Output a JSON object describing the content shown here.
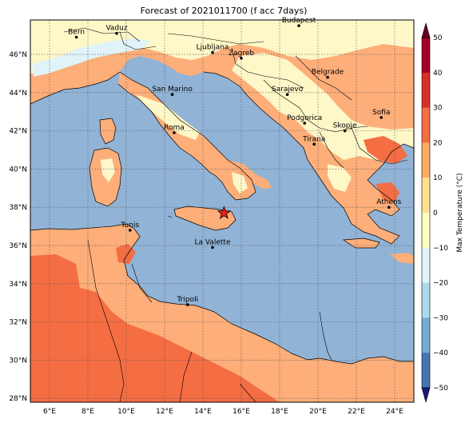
{
  "title": "Forecast of 2021011700 (f acc 7days)",
  "colors": {
    "sea": "#91b3d6",
    "land_warm": "#fdae79",
    "land_hot": "#f46d43",
    "land_mild": "#fef7c8",
    "land_cool": "#e0f3f8"
  },
  "lon_ticks": [
    "6°E",
    "8°E",
    "10°E",
    "12°E",
    "14°E",
    "16°E",
    "18°E",
    "20°E",
    "22°E",
    "24°E"
  ],
  "lat_ticks": [
    "46°N",
    "44°N",
    "42°N",
    "40°N",
    "38°N",
    "36°N",
    "34°N",
    "32°N",
    "30°N",
    "28°N"
  ],
  "cities": [
    {
      "name": "Bern",
      "lon": 7.4,
      "lat": 46.9
    },
    {
      "name": "Vaduz",
      "lon": 9.5,
      "lat": 47.1
    },
    {
      "name": "Budapest",
      "lon": 19.0,
      "lat": 47.5
    },
    {
      "name": "Ljubljana",
      "lon": 14.5,
      "lat": 46.1
    },
    {
      "name": "Zagreb",
      "lon": 16.0,
      "lat": 45.8
    },
    {
      "name": "San Marino",
      "lon": 12.4,
      "lat": 43.9
    },
    {
      "name": "Sarajevo",
      "lon": 18.4,
      "lat": 43.9
    },
    {
      "name": "Belgrade",
      "lon": 20.5,
      "lat": 44.8
    },
    {
      "name": "Roma",
      "lon": 12.5,
      "lat": 41.9
    },
    {
      "name": "Podgorica",
      "lon": 19.3,
      "lat": 42.4
    },
    {
      "name": "Skopje",
      "lon": 21.4,
      "lat": 42.0
    },
    {
      "name": "Sofia",
      "lon": 23.3,
      "lat": 42.7
    },
    {
      "name": "Tirana",
      "lon": 19.8,
      "lat": 41.3
    },
    {
      "name": "Athens",
      "lon": 23.7,
      "lat": 38.0
    },
    {
      "name": "Tunis",
      "lon": 10.2,
      "lat": 36.8
    },
    {
      "name": "La Valette",
      "lon": 14.5,
      "lat": 35.9
    },
    {
      "name": "Tripoli",
      "lon": 13.2,
      "lat": 32.9
    }
  ],
  "marker": {
    "name": "star-marker",
    "lon": 15.1,
    "lat": 37.7
  },
  "colorbar": {
    "label": "Max Temperature (°C)",
    "ticks": [
      "50",
      "40",
      "30",
      "20",
      "10",
      "0",
      "−10",
      "−20",
      "−30",
      "−40",
      "−50"
    ],
    "colors": [
      "#67001f",
      "#a50026",
      "#d73027",
      "#f46d43",
      "#fdae61",
      "#fee090",
      "#ffffbf",
      "#e0f3f8",
      "#abd9e9",
      "#74add1",
      "#4575b4",
      "#313695",
      "#1a1a7a"
    ]
  }
}
